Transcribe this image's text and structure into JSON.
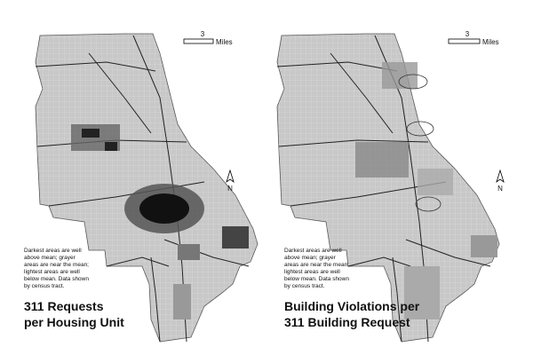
{
  "maps": [
    {
      "scale": {
        "distance": "3",
        "unit": "Miles"
      },
      "north": "N",
      "note_lines": [
        "Darkest areas are well",
        "above mean; grayer",
        "areas are near the mean;",
        "lightest areas are well",
        "below mean. Data shown",
        "by census tract."
      ],
      "title_lines": [
        "311 Requests",
        "per Housing Unit"
      ]
    },
    {
      "scale": {
        "distance": "3",
        "unit": "Miles"
      },
      "north": "N",
      "note_lines": [
        "Darkest areas are well",
        "above mean; grayer",
        "areas are near the mean;",
        "lightest areas are well",
        "below mean. Data shown",
        "by census tract."
      ],
      "title_lines": [
        "Building Violations per",
        "311 Building Request"
      ]
    }
  ]
}
